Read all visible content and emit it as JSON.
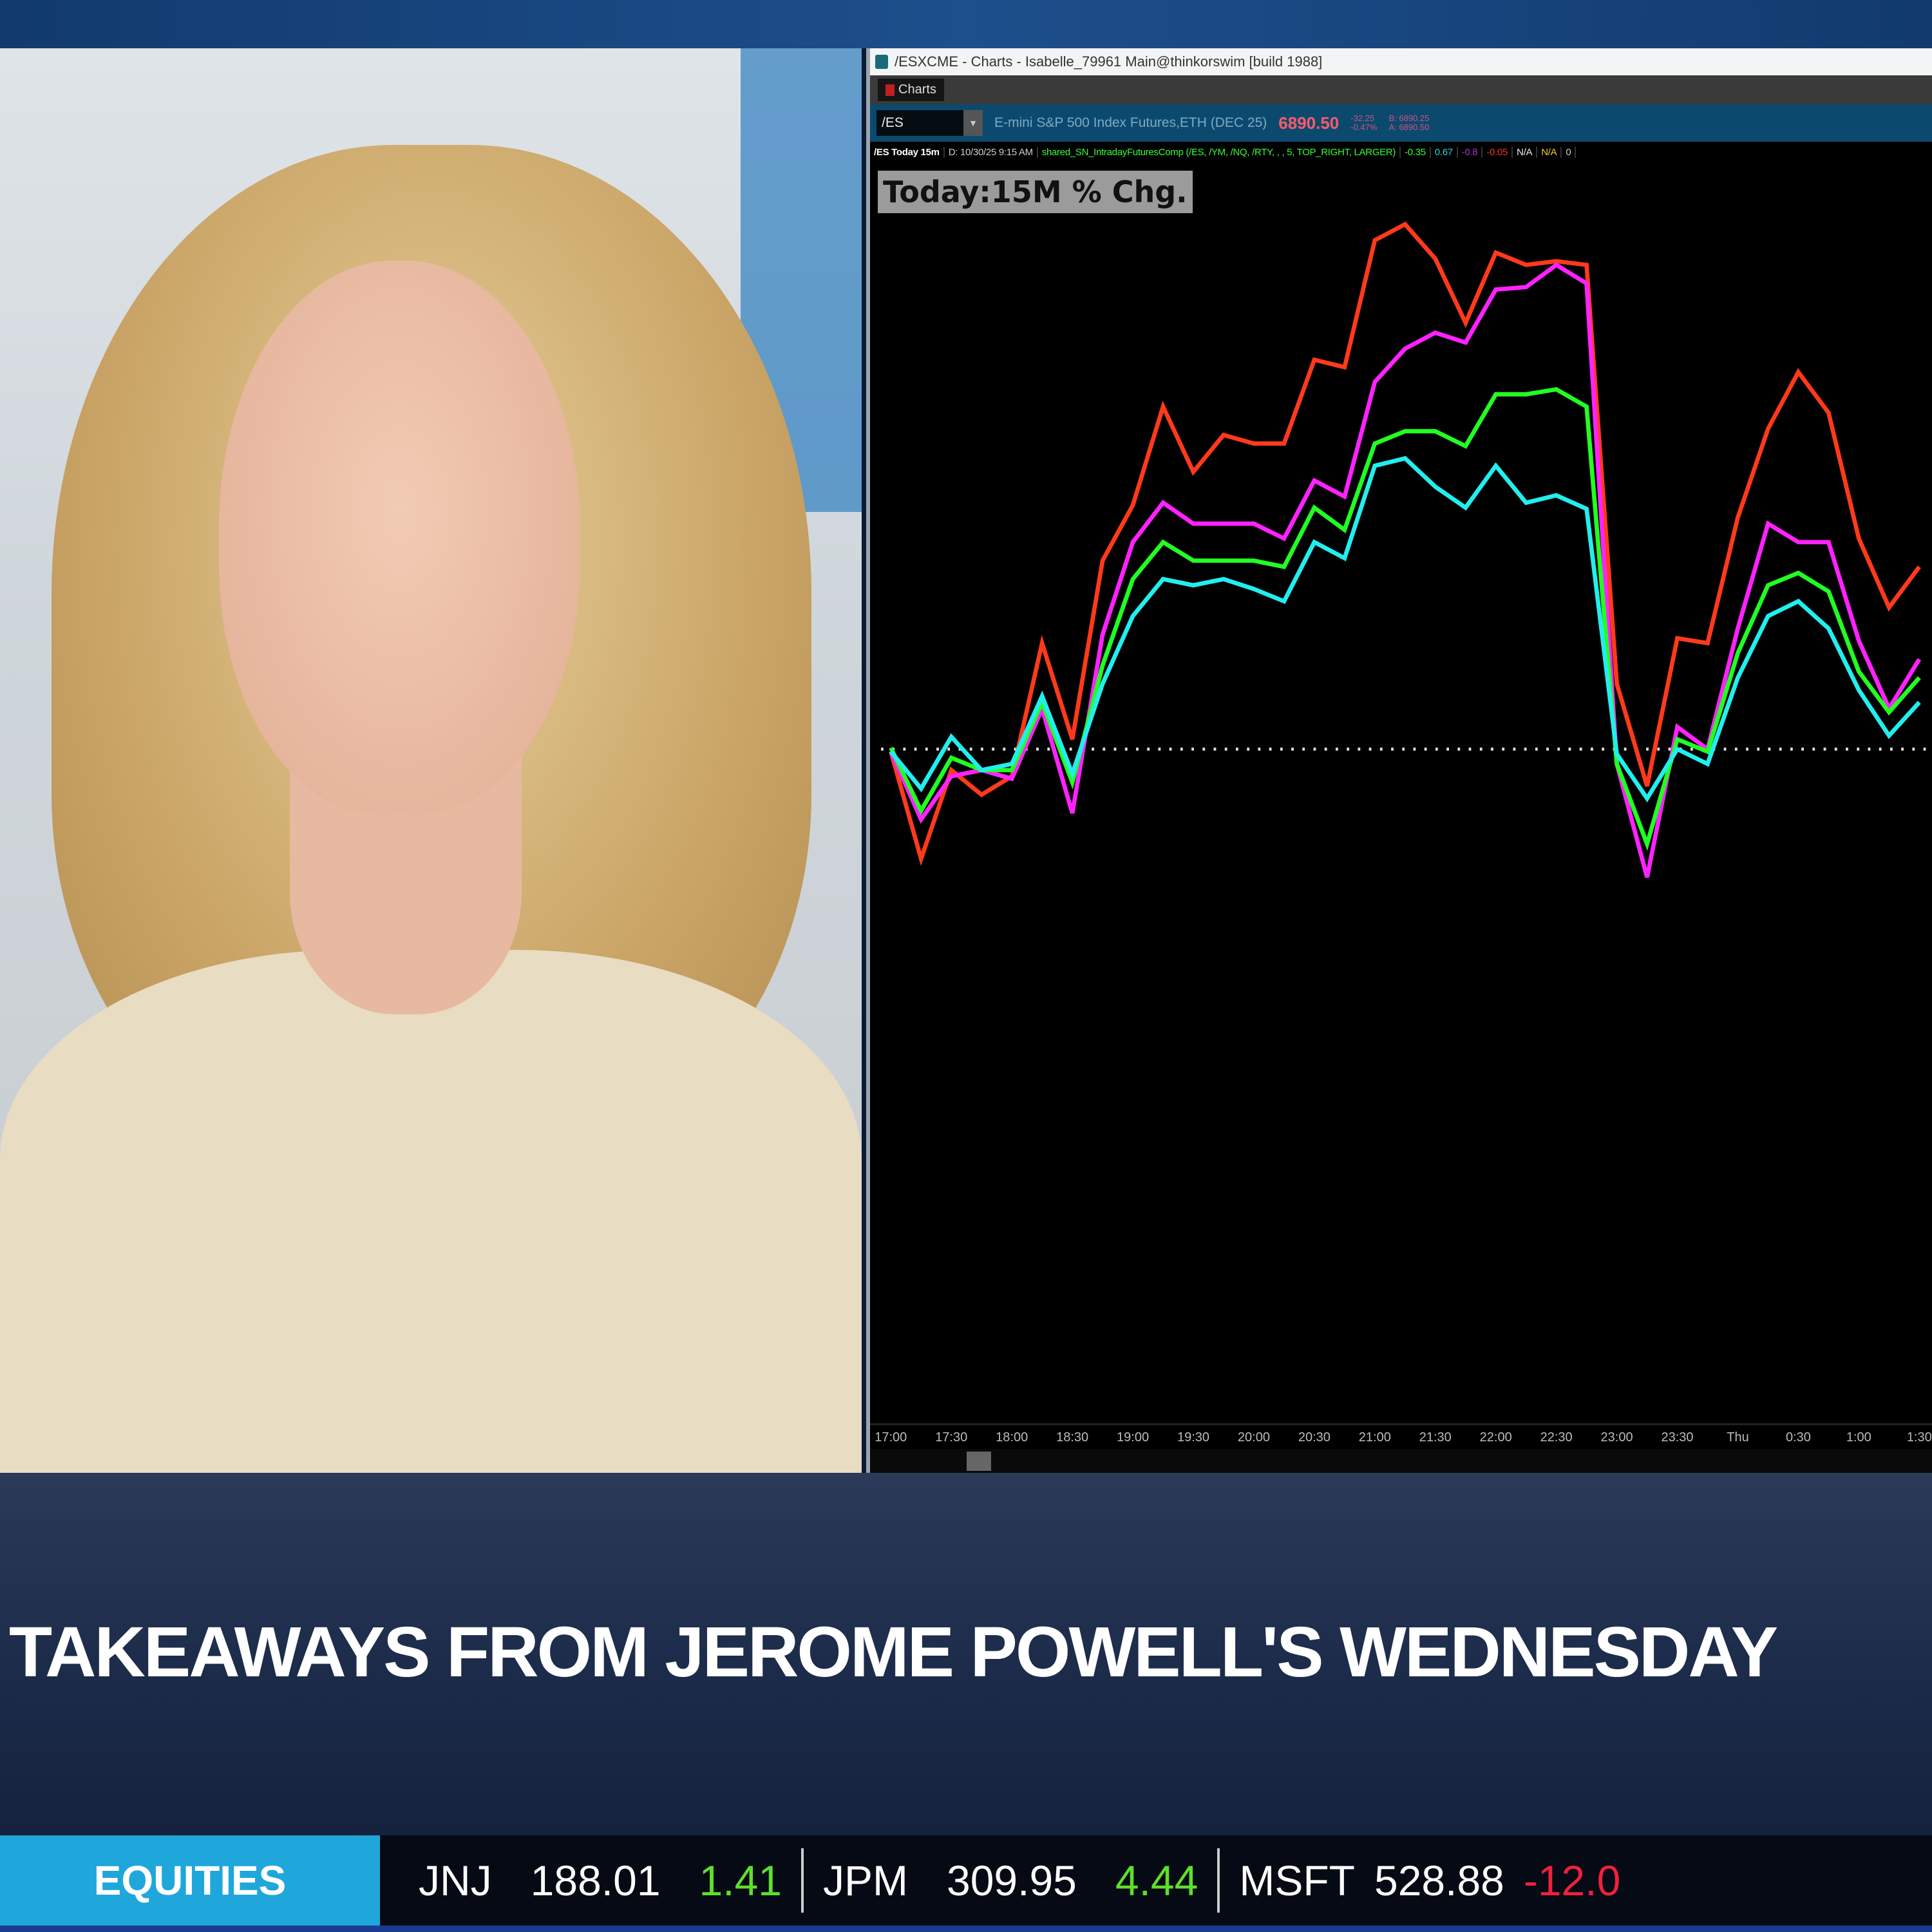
{
  "window": {
    "title": "/ESXCME - Charts - Isabelle_79961 Main@thinkorswim [build 1988]",
    "tab": "Charts"
  },
  "symbol_bar": {
    "symbol": "/ES",
    "description": "E-mini S&P 500 Index Futures,ETH (DEC 25)",
    "price": "6890.50",
    "change": "-32.25",
    "change_pct": "-0.47%",
    "bid": "B: 6890.25",
    "ask": "A: 6890.50"
  },
  "study_bar": {
    "chart_name": "/ES Today 15m",
    "date": "D: 10/30/25 9:15 AM",
    "study": "shared_SN_IntradayFuturesComp (/ES, /YM, /NQ, /RTY, , , 5, TOP_RIGHT, LARGER)",
    "values": [
      "-0.35",
      "0.67",
      "-0.8",
      "-0.05",
      "N/A",
      "N/A",
      "0"
    ]
  },
  "chart_data": {
    "type": "line",
    "title": "Today:15M % Chg.",
    "x_tick_labels": [
      "17:00",
      "17:30",
      "18:00",
      "18:30",
      "19:00",
      "19:30",
      "20:00",
      "20:30",
      "21:00",
      "21:30",
      "22:00",
      "22:30",
      "23:00",
      "23:30",
      "Thu",
      "0:30",
      "1:00",
      "1:30"
    ],
    "categories": [
      "17:00",
      "17:15",
      "17:30",
      "17:45",
      "18:00",
      "18:15",
      "18:30",
      "18:45",
      "19:00",
      "19:15",
      "19:30",
      "19:45",
      "20:00",
      "20:15",
      "20:30",
      "20:45",
      "21:00",
      "21:15",
      "21:30",
      "21:45",
      "22:00",
      "22:15",
      "22:30",
      "22:45",
      "23:00",
      "23:15",
      "23:30",
      "23:45",
      "0:00",
      "0:15",
      "0:30",
      "0:45",
      "1:00",
      "1:15",
      "1:30"
    ],
    "baseline": 0,
    "grid": false,
    "legend": "none",
    "series": [
      {
        "color": "#ff3a1a",
        "values": [
          -0.02,
          -0.89,
          -0.17,
          -0.37,
          -0.22,
          0.86,
          0.08,
          1.53,
          1.98,
          2.78,
          2.25,
          2.55,
          2.48,
          2.48,
          3.16,
          3.1,
          4.13,
          4.26,
          3.98,
          3.46,
          4.03,
          3.93,
          3.96,
          3.93,
          0.53,
          -0.3,
          0.9,
          0.86,
          1.88,
          2.6,
          3.06,
          2.73,
          1.71,
          1.15,
          1.48
        ]
      },
      {
        "color": "#ff22ff",
        "values": [
          -0.02,
          -0.57,
          -0.22,
          -0.17,
          -0.24,
          0.33,
          -0.52,
          0.93,
          1.68,
          2.0,
          1.83,
          1.83,
          1.83,
          1.71,
          2.18,
          2.05,
          2.98,
          3.25,
          3.38,
          3.3,
          3.73,
          3.75,
          3.93,
          3.78,
          -0.12,
          -1.04,
          0.18,
          0,
          0.98,
          1.83,
          1.68,
          1.68,
          0.88,
          0.33,
          0.73
        ]
      },
      {
        "color": "#22ff22",
        "values": [
          0.01,
          -0.5,
          -0.07,
          -0.17,
          -0.17,
          0.38,
          -0.27,
          0.68,
          1.38,
          1.68,
          1.53,
          1.53,
          1.53,
          1.48,
          1.96,
          1.78,
          2.48,
          2.58,
          2.58,
          2.46,
          2.88,
          2.88,
          2.92,
          2.78,
          -0.12,
          -0.77,
          0.08,
          -0.02,
          0.78,
          1.33,
          1.43,
          1.28,
          0.63,
          0.3,
          0.58
        ]
      },
      {
        "color": "#22eeee",
        "values": [
          -0.02,
          -0.32,
          0.1,
          -0.17,
          -0.12,
          0.43,
          -0.2,
          0.53,
          1.08,
          1.38,
          1.33,
          1.38,
          1.3,
          1.2,
          1.68,
          1.55,
          2.3,
          2.36,
          2.13,
          1.96,
          2.3,
          2.0,
          2.06,
          1.95,
          -0.04,
          -0.4,
          0,
          -0.12,
          0.58,
          1.08,
          1.2,
          0.98,
          0.48,
          0.11,
          0.38
        ]
      }
    ]
  },
  "lower_third": {
    "headline": "TAKEAWAYS FROM JEROME POWELL'S WEDNESDAY"
  },
  "ticker": {
    "category": "EQUITIES",
    "items": [
      {
        "symbol": "JNJ",
        "price": "188.01",
        "change": "1.41",
        "dir": "up"
      },
      {
        "symbol": "JPM",
        "price": "309.95",
        "change": "4.44",
        "dir": "up"
      },
      {
        "symbol": "MSFT",
        "price": "528.88",
        "change": "-12.0",
        "dir": "down"
      }
    ]
  }
}
